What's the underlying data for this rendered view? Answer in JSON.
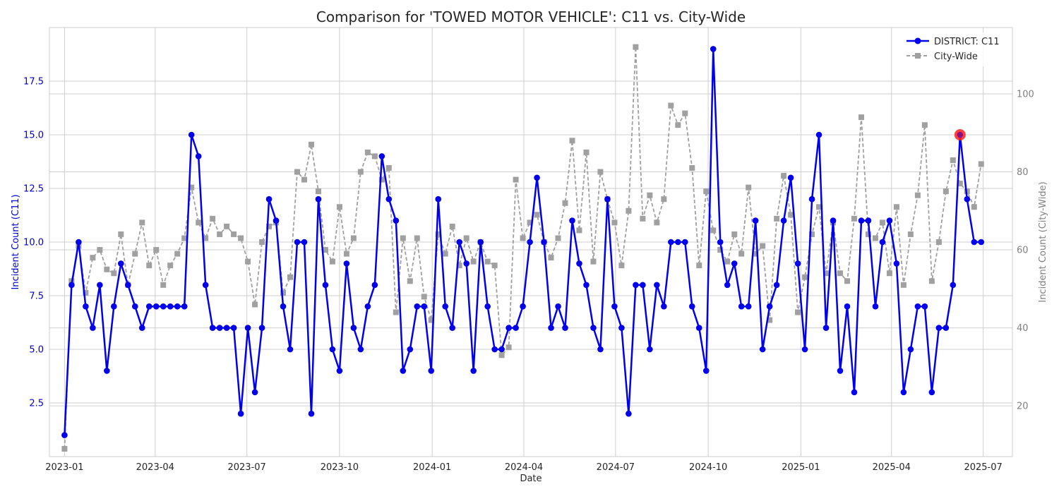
{
  "chart_data": {
    "type": "line",
    "title": "Comparison for 'TOWED MOTOR VEHICLE': C11 vs. City-Wide",
    "xlabel": "Date",
    "ylabel_left": "Incident Count (C11)",
    "ylabel_right": "Incident Count (City-Wide)",
    "x_ticks": [
      "2023-01",
      "2023-04",
      "2023-07",
      "2023-10",
      "2024-01",
      "2024-04",
      "2024-07",
      "2024-10",
      "2025-01",
      "2025-04",
      "2025-07"
    ],
    "y_left_ticks": [
      "2.5",
      "5.0",
      "7.5",
      "10.0",
      "12.5",
      "15.0",
      "17.5"
    ],
    "y_right_ticks": [
      "20",
      "40",
      "60",
      "80",
      "100"
    ],
    "ylim_left": [
      0,
      20
    ],
    "ylim_right": [
      7,
      117
    ],
    "xlim": [
      "2022-12-17",
      "2025-07-30"
    ],
    "grid": true,
    "legend_position": "top-right",
    "colors": {
      "district": "#0000ee",
      "citywide": "#a0a0a0",
      "highlight": "#ff2020",
      "left_axis": "#0000cc",
      "right_axis": "#808080"
    },
    "x": [
      "2023-01-01",
      "2023-01-08",
      "2023-01-15",
      "2023-01-22",
      "2023-01-29",
      "2023-02-05",
      "2023-02-12",
      "2023-02-19",
      "2023-02-26",
      "2023-03-05",
      "2023-03-12",
      "2023-03-19",
      "2023-03-26",
      "2023-04-02",
      "2023-04-09",
      "2023-04-16",
      "2023-04-23",
      "2023-04-30",
      "2023-05-07",
      "2023-05-14",
      "2023-05-21",
      "2023-05-28",
      "2023-06-04",
      "2023-06-11",
      "2023-06-18",
      "2023-06-25",
      "2023-07-02",
      "2023-07-09",
      "2023-07-16",
      "2023-07-23",
      "2023-07-30",
      "2023-08-06",
      "2023-08-13",
      "2023-08-20",
      "2023-08-27",
      "2023-09-03",
      "2023-09-10",
      "2023-09-17",
      "2023-09-24",
      "2023-10-01",
      "2023-10-08",
      "2023-10-15",
      "2023-10-22",
      "2023-10-29",
      "2023-11-05",
      "2023-11-12",
      "2023-11-19",
      "2023-11-26",
      "2023-12-03",
      "2023-12-10",
      "2023-12-17",
      "2023-12-24",
      "2023-12-31",
      "2024-01-07",
      "2024-01-14",
      "2024-01-21",
      "2024-01-28",
      "2024-02-04",
      "2024-02-11",
      "2024-02-18",
      "2024-02-25",
      "2024-03-03",
      "2024-03-10",
      "2024-03-17",
      "2024-03-24",
      "2024-03-31",
      "2024-04-07",
      "2024-04-14",
      "2024-04-21",
      "2024-04-28",
      "2024-05-05",
      "2024-05-12",
      "2024-05-19",
      "2024-05-26",
      "2024-06-02",
      "2024-06-09",
      "2024-06-16",
      "2024-06-23",
      "2024-06-30",
      "2024-07-07",
      "2024-07-14",
      "2024-07-21",
      "2024-07-28",
      "2024-08-04",
      "2024-08-11",
      "2024-08-18",
      "2024-08-25",
      "2024-09-01",
      "2024-09-08",
      "2024-09-15",
      "2024-09-22",
      "2024-09-29",
      "2024-10-06",
      "2024-10-13",
      "2024-10-20",
      "2024-10-27",
      "2024-11-03",
      "2024-11-10",
      "2024-11-17",
      "2024-11-24",
      "2024-12-01",
      "2024-12-08",
      "2024-12-15",
      "2024-12-22",
      "2024-12-29",
      "2025-01-05",
      "2025-01-12",
      "2025-01-19",
      "2025-01-26",
      "2025-02-02",
      "2025-02-09",
      "2025-02-16",
      "2025-02-23",
      "2025-03-02",
      "2025-03-09",
      "2025-03-16",
      "2025-03-23",
      "2025-03-30",
      "2025-04-06",
      "2025-04-13",
      "2025-04-20",
      "2025-04-27",
      "2025-05-04",
      "2025-05-11",
      "2025-05-18",
      "2025-05-25",
      "2025-06-01",
      "2025-06-08",
      "2025-06-15",
      "2025-06-22",
      "2025-06-29"
    ],
    "series": [
      {
        "name": "DISTRICT: C11",
        "axis": "left",
        "marker": "circle",
        "style": "solid",
        "values": [
          1,
          8,
          10,
          7,
          6,
          8,
          4,
          7,
          9,
          8,
          7,
          6,
          7,
          7,
          7,
          7,
          7,
          7,
          15,
          14,
          8,
          6,
          6,
          6,
          6,
          2,
          6,
          3,
          6,
          12,
          11,
          7,
          5,
          10,
          10,
          2,
          12,
          8,
          5,
          4,
          9,
          6,
          5,
          7,
          8,
          14,
          12,
          11,
          4,
          5,
          7,
          7,
          4,
          12,
          7,
          6,
          10,
          9,
          4,
          10,
          7,
          5,
          5,
          6,
          6,
          7,
          10,
          13,
          10,
          6,
          7,
          6,
          11,
          9,
          8,
          6,
          5,
          12,
          7,
          6,
          2,
          8,
          8,
          5,
          8,
          7,
          10,
          10,
          10,
          7,
          6,
          4,
          19,
          10,
          8,
          9,
          7,
          7,
          11,
          5,
          7,
          8,
          11,
          13,
          9,
          5,
          12,
          15,
          6,
          11,
          4,
          7,
          3,
          11,
          11,
          7,
          10,
          11,
          9,
          3,
          5,
          7,
          7,
          3,
          6,
          6,
          8,
          15,
          12,
          10,
          10
        ]
      },
      {
        "name": "City-Wide",
        "axis": "right",
        "marker": "square",
        "style": "dashed",
        "values": [
          9,
          52,
          61,
          49,
          58,
          60,
          55,
          54,
          64,
          51,
          59,
          67,
          56,
          60,
          51,
          56,
          59,
          63,
          76,
          67,
          63,
          68,
          64,
          66,
          64,
          63,
          57,
          46,
          62,
          66,
          67,
          49,
          53,
          80,
          78,
          87,
          75,
          60,
          57,
          71,
          59,
          63,
          80,
          85,
          84,
          78,
          81,
          44,
          63,
          52,
          63,
          48,
          42,
          64,
          59,
          66,
          56,
          63,
          57,
          62,
          57,
          56,
          33,
          35,
          78,
          63,
          67,
          69,
          62,
          58,
          63,
          72,
          88,
          65,
          85,
          57,
          80,
          73,
          67,
          56,
          70,
          112,
          68,
          74,
          67,
          73,
          97,
          92,
          95,
          81,
          56,
          75,
          65,
          60,
          57,
          64,
          59,
          76,
          59,
          61,
          42,
          68,
          79,
          69,
          44,
          53,
          64,
          71,
          54,
          67,
          54,
          52,
          68,
          94,
          64,
          63,
          67,
          54,
          71,
          51,
          64,
          74,
          92,
          52,
          62,
          75,
          83,
          77,
          75,
          71,
          82
        ]
      }
    ],
    "highlight": {
      "x": "2025-06-08",
      "value": 15,
      "series": "DISTRICT: C11"
    }
  }
}
